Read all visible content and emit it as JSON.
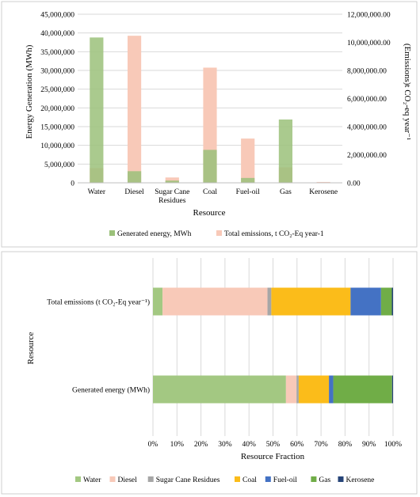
{
  "chart_data": [
    {
      "type": "bar",
      "xlabel": "Resource",
      "ylabel": "Energy Generation (MWh)",
      "y2label": "(Emissions)t CO₂-eq year⁻¹",
      "categories": [
        "Water",
        "Diesel",
        "Sugar Cane Residues",
        "Coal",
        "Fuel-oil",
        "Gas",
        "Kerosene"
      ],
      "ylim": [
        0,
        45000000
      ],
      "yticks": [
        "0",
        "5,000,000",
        "10,000,000",
        "15,000,000",
        "20,000,000",
        "25,000,000",
        "30,000,000",
        "35,000,000",
        "40,000,000",
        "45,000,000"
      ],
      "y2lim": [
        0,
        12000000
      ],
      "y2ticks": [
        "0.00",
        "2,000,000.00",
        "4,000,000.00",
        "6,000,000.00",
        "8,000,000.00",
        "10,000,000.00",
        "12,000,000.00"
      ],
      "grid": true,
      "legend": "bottom",
      "series": [
        {
          "name": "Generated energy, MWh",
          "axis": "left",
          "color": "#9bc17a",
          "values": [
            38800000,
            3100000,
            600000,
            8800000,
            1300000,
            16900000,
            50000
          ]
        },
        {
          "name": "Total emissions, t CO₂-Eq year-1",
          "axis": "right",
          "color": "#f8c9b8",
          "values": [
            1050000,
            10470000,
            380000,
            8200000,
            3150000,
            1100000,
            60000
          ]
        }
      ]
    },
    {
      "type": "bar",
      "orientation": "horizontal",
      "stacked": true,
      "xlabel": "Resource Fraction",
      "ylabel": "Resource",
      "categories": [
        "Total emissions (t CO₂-Eq year⁻¹)",
        "Generated energy (MWh)"
      ],
      "xlim": [
        0,
        1
      ],
      "xticks": [
        "0%",
        "10%",
        "20%",
        "30%",
        "40%",
        "50%",
        "60%",
        "70%",
        "80%",
        "90%",
        "100%"
      ],
      "grid": true,
      "legend": "bottom",
      "series": [
        {
          "name": "Water",
          "color": "#a3c882",
          "values": [
            0.04,
            0.554
          ]
        },
        {
          "name": "Diesel",
          "color": "#f8c9b8",
          "values": [
            0.437,
            0.044
          ]
        },
        {
          "name": "Sugar Cane Residues",
          "color": "#a6a6a6",
          "values": [
            0.016,
            0.009
          ]
        },
        {
          "name": "Coal",
          "color": "#fbbc1a",
          "values": [
            0.33,
            0.126
          ]
        },
        {
          "name": "Fuel-oil",
          "color": "#4472c4",
          "values": [
            0.127,
            0.018
          ]
        },
        {
          "name": "Gas",
          "color": "#70ad47",
          "values": [
            0.045,
            0.245
          ]
        },
        {
          "name": "Kerosene",
          "color": "#264478",
          "values": [
            0.005,
            0.004
          ]
        }
      ]
    }
  ]
}
